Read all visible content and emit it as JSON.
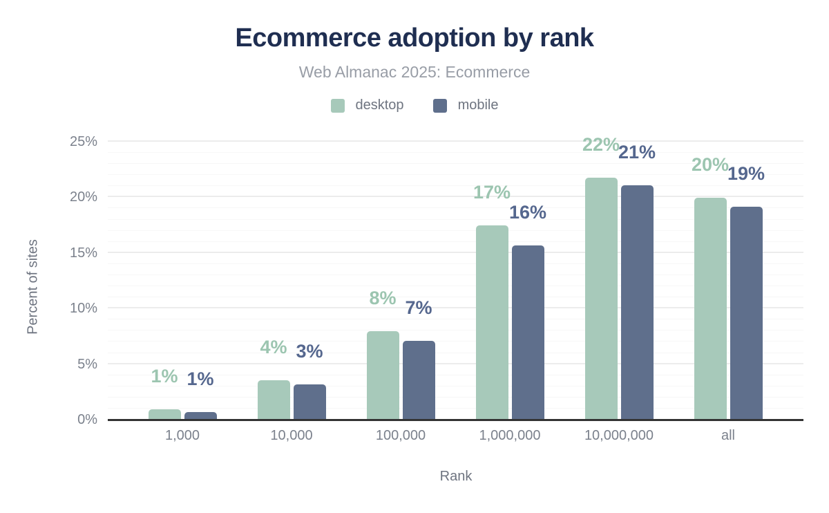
{
  "palette": {
    "background": "#ffffff",
    "title": "#1f2e51",
    "subtitle": "#989da6",
    "tick": "#7b818c",
    "axis_title": "#6e7480",
    "axis_line": "#333333",
    "grid_major": "#ececec",
    "grid_minor": "#f7f7f7"
  },
  "chart_data": {
    "type": "bar",
    "title": "Ecommerce adoption by rank",
    "subtitle": "Web Almanac 2025: Ecommerce",
    "categories": [
      "1,000",
      "10,000",
      "100,000",
      "1,000,000",
      "10,000,000",
      "all"
    ],
    "series": [
      {
        "name": "desktop",
        "color": "#a7c9ba",
        "label_color": "#9cc5b0",
        "values": [
          0.9,
          3.5,
          7.9,
          17.4,
          21.7,
          19.9
        ],
        "labels": [
          "1%",
          "4%",
          "8%",
          "17%",
          "22%",
          "20%"
        ]
      },
      {
        "name": "mobile",
        "color": "#5f6f8c",
        "label_color": "#55678e",
        "values": [
          0.6,
          3.1,
          7.0,
          15.6,
          21.0,
          19.1
        ],
        "labels": [
          "1%",
          "3%",
          "7%",
          "16%",
          "21%",
          "19%"
        ]
      }
    ],
    "xlabel": "Rank",
    "ylabel": "Percent of sites",
    "ylim": [
      0,
      25
    ],
    "yticks": [
      "0%",
      "5%",
      "10%",
      "15%",
      "20%",
      "25%"
    ],
    "ytick_values": [
      0,
      5,
      10,
      15,
      20,
      25
    ],
    "grid": {
      "major_every": 5,
      "minor_every": 1,
      "visible": true
    },
    "legend_position": "top"
  }
}
